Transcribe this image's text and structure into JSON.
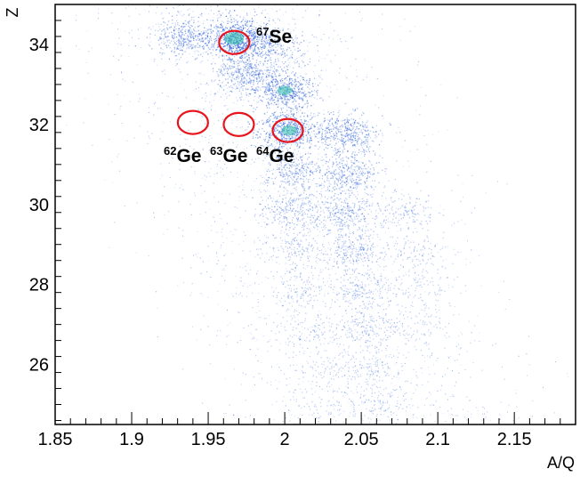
{
  "chart_data": {
    "type": "heatmap",
    "xlabel": "A/Q",
    "ylabel": "Z",
    "xlim": [
      1.85,
      2.19
    ],
    "ylim": [
      24.5,
      35
    ],
    "x_ticks": [
      "1.85",
      "1.9",
      "1.95",
      "2",
      "2.05",
      "2.1",
      "2.15"
    ],
    "y_ticks": [
      "26",
      "28",
      "30",
      "32",
      "34"
    ],
    "clusters": [
      {
        "x": 1.967,
        "z": 34.15,
        "intensity": 1.0
      },
      {
        "x": 1.935,
        "z": 34.2,
        "intensity": 0.55
      },
      {
        "x": 1.99,
        "z": 34.0,
        "intensity": 0.5
      },
      {
        "x": 1.975,
        "z": 33.3,
        "intensity": 0.55
      },
      {
        "x": 2.0,
        "z": 32.85,
        "intensity": 0.75
      },
      {
        "x": 2.003,
        "z": 31.85,
        "intensity": 0.8
      },
      {
        "x": 2.04,
        "z": 31.8,
        "intensity": 0.6
      },
      {
        "x": 2.04,
        "z": 30.8,
        "intensity": 0.5
      },
      {
        "x": 2.005,
        "z": 30.85,
        "intensity": 0.4
      },
      {
        "x": 2.005,
        "z": 29.9,
        "intensity": 0.35
      },
      {
        "x": 2.04,
        "z": 29.8,
        "intensity": 0.4
      },
      {
        "x": 2.08,
        "z": 29.8,
        "intensity": 0.2
      },
      {
        "x": 2.045,
        "z": 28.85,
        "intensity": 0.32
      },
      {
        "x": 2.005,
        "z": 28.9,
        "intensity": 0.2
      },
      {
        "x": 2.085,
        "z": 28.8,
        "intensity": 0.15
      },
      {
        "x": 2.05,
        "z": 27.85,
        "intensity": 0.25
      },
      {
        "x": 2.01,
        "z": 27.9,
        "intensity": 0.15
      },
      {
        "x": 2.09,
        "z": 27.85,
        "intensity": 0.12
      },
      {
        "x": 2.055,
        "z": 26.9,
        "intensity": 0.2
      },
      {
        "x": 2.02,
        "z": 26.9,
        "intensity": 0.12
      },
      {
        "x": 2.09,
        "z": 26.9,
        "intensity": 0.1
      },
      {
        "x": 2.055,
        "z": 25.95,
        "intensity": 0.15
      },
      {
        "x": 2.025,
        "z": 25.95,
        "intensity": 0.1
      },
      {
        "x": 2.06,
        "z": 25.0,
        "intensity": 0.12
      },
      {
        "x": 2.025,
        "z": 25.0,
        "intensity": 0.08
      }
    ],
    "annotations": [
      {
        "mass": "67",
        "element": "Se",
        "x": 1.967,
        "z": 34.05
      },
      {
        "mass": "62",
        "element": "Ge",
        "x": 1.94,
        "z": 32.05
      },
      {
        "mass": "63",
        "element": "Ge",
        "x": 1.97,
        "z": 32.0
      },
      {
        "mass": "64",
        "element": "Ge",
        "x": 2.002,
        "z": 31.85
      }
    ],
    "colors": {
      "points": "#2b5fd9",
      "hot": "#2fbfa8",
      "circles": "#e8141c"
    },
    "grid": false
  }
}
